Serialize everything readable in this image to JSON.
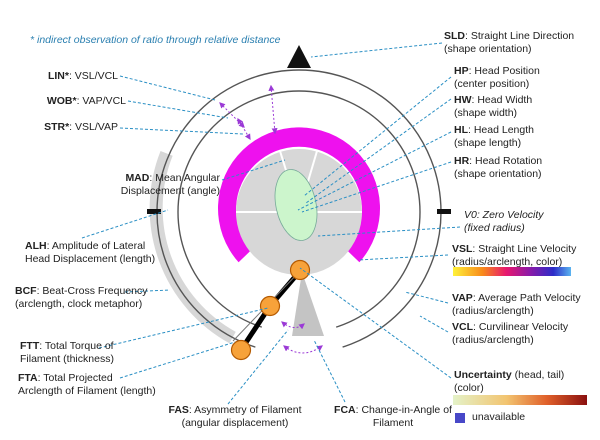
{
  "note": {
    "line1": "* indirect observation of ratio",
    "line2": "through relative distance"
  },
  "left_labels": {
    "lin": {
      "key": "LIN*",
      "text": ": VSL/VCL"
    },
    "wob": {
      "key": "WOB*",
      "text": ": VAP/VCL"
    },
    "str": {
      "key": "STR*",
      "text": ": VSL/VAP"
    },
    "mad": {
      "key": "MAD",
      "text": ": Mean Angular",
      "line2": "Displacement (angle)"
    },
    "alh": {
      "key": "ALH",
      "text": ": Amplitude of Lateral",
      "line2": "Head Displacement (length)"
    },
    "bcf": {
      "key": "BCF",
      "text": ": Beat-Cross Frequency",
      "line2": "(arclength, clock metaphor)"
    },
    "ftt": {
      "key": "FTT",
      "text": ": Total Torque of",
      "line2": "Filament (thickness)"
    },
    "fta": {
      "key": "FTA",
      "text": ": Total Projected",
      "line2": "Arclength of Filament (length)"
    }
  },
  "right_labels": {
    "sld": {
      "key": "SLD",
      "text": ": Straight Line Direction",
      "line2": "(shape orientation)"
    },
    "hp": {
      "key": "HP",
      "text": ": Head Position",
      "line2": "(center position)"
    },
    "hw": {
      "key": "HW",
      "text": ": Head Width",
      "line2": "(shape width)"
    },
    "hl": {
      "key": "HL",
      "text": ": Head Length",
      "line2": "(shape length)"
    },
    "hr": {
      "key": "HR",
      "text": ": Head Rotation",
      "line2": "(shape orientation)"
    },
    "v0": {
      "line1": "V0: Zero Velocity",
      "line2": "(fixed radius)"
    },
    "vsl": {
      "key": "VSL",
      "text": ": Straight Line Velocity",
      "line2": "(radius/arclength, color)"
    },
    "vap": {
      "key": "VAP",
      "text": ": Average Path Velocity",
      "line2": "(radius/arclength)"
    },
    "vcl": {
      "key": "VCL",
      "text": ": Curvilinear Velocity",
      "line2": "(radius/arclength)"
    },
    "unc": {
      "key": "Uncertainty",
      "text": " (head, tail)",
      "line2": "(color)"
    }
  },
  "bottom_labels": {
    "fas": {
      "key": "FAS",
      "text": ": Asymmetry of Filament",
      "line2": "(angular displacement)"
    },
    "fca": {
      "key": "FCA",
      "text": ": Change-in-Angle of",
      "line2": "Filament"
    }
  },
  "legend": {
    "unavailable": "unavailable"
  },
  "colors": {
    "magenta": "#ee11ee",
    "ring_gray": "#d7d7d7",
    "head_green": "#ccf5cc",
    "tail_orange": "#f7a23a",
    "leader_blue": "#2a8fc4",
    "arrow_purple": "#9b3ad6",
    "unavailable_blue": "#4848c8"
  },
  "icons": {
    "top_marker": "triangle-up-icon",
    "tail_joints": "circle-icon"
  }
}
